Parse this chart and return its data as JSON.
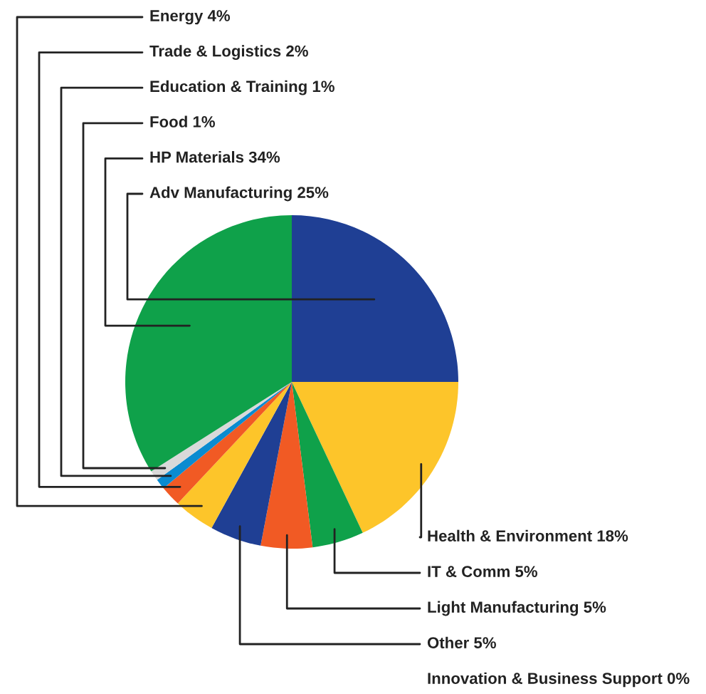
{
  "chart_data": {
    "type": "pie",
    "categories": [
      "Adv Manufacturing",
      "Health & Environment",
      "IT & Comm",
      "Light Manufacturing",
      "Other",
      "Energy",
      "Trade & Logistics",
      "Education & Training",
      "Food",
      "HP Materials",
      "Innovation & Business Support"
    ],
    "values": [
      25,
      18,
      5,
      5,
      5,
      4,
      2,
      1,
      1,
      34,
      0
    ],
    "value_labels": [
      "25%",
      "18%",
      "5%",
      "5%",
      "5%",
      "4%",
      "2%",
      "1%",
      "1%",
      "34%",
      "0%"
    ],
    "colors": [
      "#1f3f94",
      "#fdc52a",
      "#0fa14a",
      "#f15a24",
      "#1f3f94",
      "#fdc52a",
      "#f15a24",
      "#0a8bd0",
      "#d9d9d9",
      "#0fa14a",
      "#999999"
    ]
  }
}
